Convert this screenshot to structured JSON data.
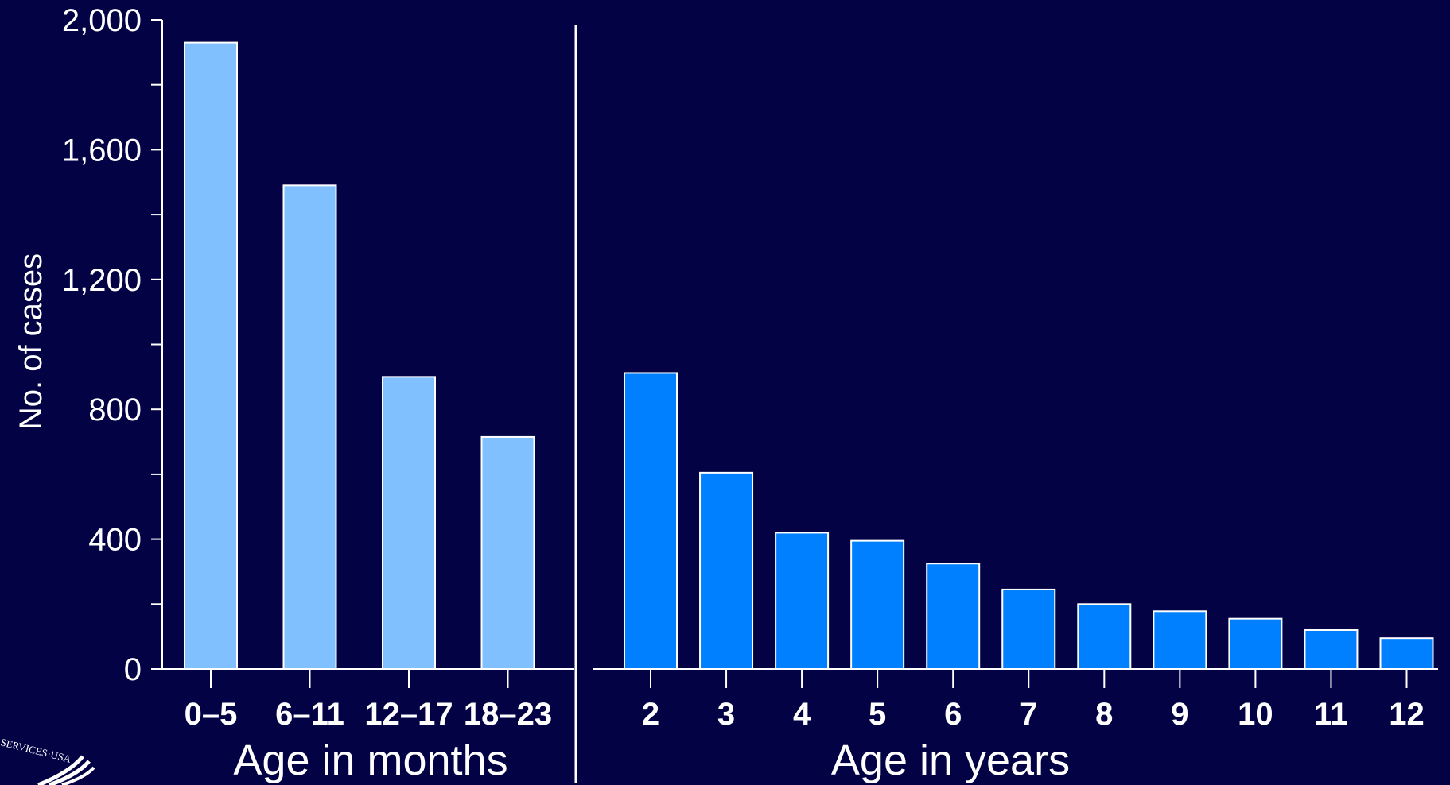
{
  "chart_data": {
    "type": "bar",
    "title": "",
    "ylabel": "No. of cases",
    "ylim": [
      0,
      2000
    ],
    "yticks": [
      0,
      400,
      800,
      1200,
      1600,
      2000
    ],
    "ytick_labels": [
      "0",
      "400",
      "800",
      "1,200",
      "1,600",
      "2,000"
    ],
    "grid": false,
    "groups": [
      {
        "label": "Age in months",
        "color": "#80c0ff",
        "categories": [
          "0–5",
          "6–11",
          "12–17",
          "18–23"
        ],
        "values": [
          1930,
          1490,
          900,
          715
        ]
      },
      {
        "label": "Age in years",
        "color": "#0080ff",
        "categories": [
          "2",
          "3",
          "4",
          "5",
          "6",
          "7",
          "8",
          "9",
          "10",
          "11",
          "12"
        ],
        "values": [
          912,
          605,
          420,
          395,
          325,
          245,
          200,
          178,
          155,
          120,
          95
        ]
      }
    ]
  },
  "colors": {
    "background": "#020244",
    "axis": "#ffffff",
    "bar_outline": "#ffffff"
  },
  "seal": {
    "text": "SERVICES·USA",
    "icon": "hhs-eagle-seal-icon"
  }
}
